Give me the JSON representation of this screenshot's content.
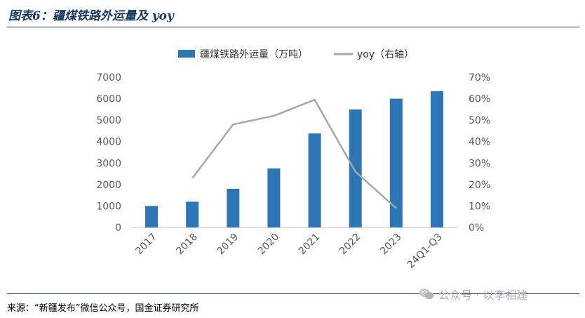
{
  "header": {
    "title": "图表6：疆煤铁路外运量及 yoy"
  },
  "footer": {
    "source": "来源：“新疆发布”微信公众号，国金证券研究所",
    "watermark": "公众号 · 以李相建"
  },
  "colors": {
    "bar": "#2e75b6",
    "line": "#a6a6a6",
    "rule": "#17375e"
  },
  "chart_data": {
    "type": "bar",
    "categories": [
      "2017",
      "2018",
      "2019",
      "2020",
      "2021",
      "2022",
      "2023",
      "24Q1-Q3"
    ],
    "series": [
      {
        "name": "疆煤铁路外运量（万吨）",
        "type": "bar",
        "axis": "left",
        "values": [
          1000,
          1200,
          1800,
          2750,
          4380,
          5500,
          6000,
          6350
        ]
      },
      {
        "name": "yoy（右轴）",
        "type": "line",
        "axis": "right",
        "values": [
          null,
          0.23,
          0.48,
          0.52,
          0.595,
          0.26,
          0.09,
          null
        ]
      }
    ],
    "y_left": {
      "min": 0,
      "max": 7000,
      "ticks": [
        "0",
        "1000",
        "2000",
        "3000",
        "4000",
        "5000",
        "6000",
        "7000"
      ]
    },
    "y_right": {
      "min": 0,
      "max": 0.7,
      "ticks": [
        "0%",
        "10%",
        "20%",
        "30%",
        "40%",
        "50%",
        "60%",
        "70%"
      ]
    },
    "legend_position": "top",
    "grid": false
  }
}
